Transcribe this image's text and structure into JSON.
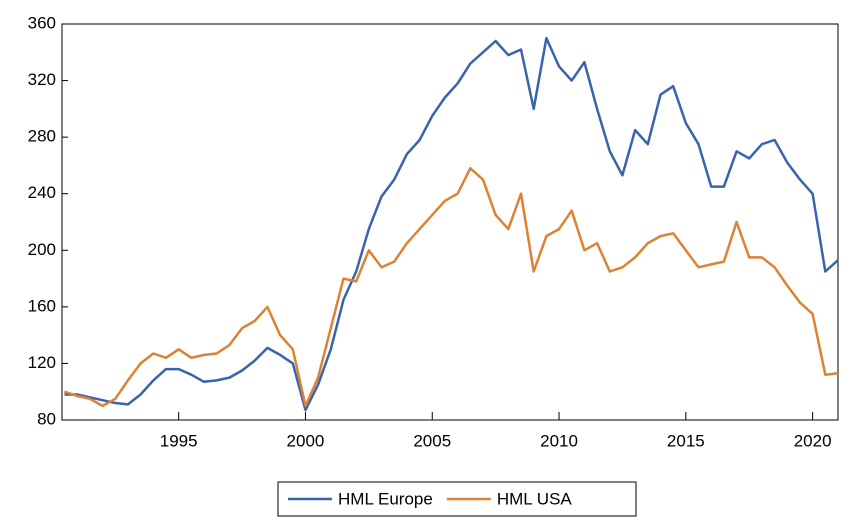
{
  "chart_data": {
    "type": "line",
    "x": [
      1990.5,
      1991,
      1991.5,
      1992,
      1992.5,
      1993,
      1993.5,
      1994,
      1994.5,
      1995,
      1995.5,
      1996,
      1996.5,
      1997,
      1997.5,
      1998,
      1998.5,
      1999,
      1999.5,
      2000,
      2000.5,
      2001,
      2001.5,
      2002,
      2002.5,
      2003,
      2003.5,
      2004,
      2004.5,
      2005,
      2005.5,
      2006,
      2006.5,
      2007,
      2007.5,
      2008,
      2008.5,
      2009,
      2009.5,
      2010,
      2010.5,
      2011,
      2011.5,
      2012,
      2012.5,
      2013,
      2013.5,
      2014,
      2014.5,
      2015,
      2015.5,
      2016,
      2016.5,
      2017,
      2017.5,
      2018,
      2018.5,
      2019,
      2019.5,
      2020,
      2020.5,
      2021
    ],
    "series": [
      {
        "name": "HML Europe",
        "color": "#3a63ad",
        "values": [
          98,
          98,
          96,
          94,
          92,
          91,
          98,
          108,
          116,
          116,
          112,
          107,
          108,
          110,
          115,
          122,
          131,
          126,
          120,
          87,
          105,
          130,
          165,
          185,
          215,
          238,
          250,
          268,
          278,
          295,
          308,
          318,
          332,
          340,
          348,
          338,
          342,
          300,
          350,
          330,
          320,
          333,
          300,
          270,
          253,
          285,
          275,
          310,
          316,
          290,
          275,
          245,
          245,
          270,
          265,
          275,
          278,
          262,
          250,
          240,
          185,
          193
        ]
      },
      {
        "name": "HML USA",
        "color": "#dd8233",
        "values": [
          100,
          97,
          95,
          90,
          95,
          108,
          120,
          127,
          124,
          130,
          124,
          126,
          127,
          133,
          145,
          150,
          160,
          140,
          130,
          90,
          110,
          145,
          180,
          178,
          200,
          188,
          192,
          205,
          215,
          225,
          235,
          240,
          258,
          250,
          225,
          215,
          240,
          185,
          210,
          215,
          228,
          200,
          205,
          185,
          188,
          195,
          205,
          210,
          212,
          200,
          188,
          190,
          192,
          220,
          195,
          195,
          188,
          175,
          163,
          155,
          112,
          113
        ]
      }
    ],
    "xlim": [
      1990.4,
      2021.0
    ],
    "xticks": [
      1995,
      2000,
      2005,
      2010,
      2015,
      2020
    ],
    "ylim": [
      80,
      360
    ],
    "yticks": [
      80,
      120,
      160,
      200,
      240,
      280,
      320,
      360
    ],
    "legend": "bottom"
  }
}
